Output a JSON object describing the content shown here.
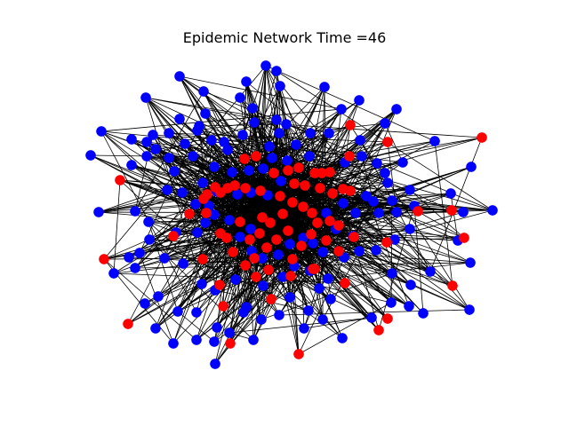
{
  "figure": {
    "title": "Epidemic Network Time =46"
  },
  "colors": {
    "infected": "#ff0000",
    "susceptible": "#0000ff",
    "edge": "#000000",
    "node_stroke": "#000000",
    "background": "#ffffff"
  },
  "legend": {
    "infected_color_name": "red",
    "susceptible_color_name": "blue"
  },
  "chart_data": {
    "type": "network",
    "title": "Epidemic Network Time =46",
    "time": 46,
    "axes_visible": false,
    "grid": false,
    "node_states": [
      "infected",
      "susceptible"
    ],
    "infected_count": 78,
    "susceptible_count": 152,
    "nodes": [
      {
        "state": "susceptible"
      },
      {
        "state": "susceptible"
      },
      {
        "state": "susceptible"
      },
      {
        "state": "susceptible"
      },
      {
        "state": "susceptible"
      },
      {
        "state": "susceptible"
      },
      {
        "state": "susceptible"
      },
      {
        "state": "susceptible"
      },
      {
        "state": "susceptible"
      },
      {
        "state": "susceptible"
      },
      {
        "state": "infected"
      },
      {
        "state": "infected"
      },
      {
        "state": "infected"
      },
      {
        "state": "infected"
      },
      {
        "state": "infected"
      },
      {
        "state": "infected"
      },
      {
        "state": "infected"
      },
      {
        "state": "infected"
      },
      {
        "state": "infected"
      },
      {
        "state": "infected"
      },
      {
        "state": "infected"
      },
      {
        "state": "infected"
      },
      {
        "state": "infected"
      },
      {
        "state": "infected"
      },
      {
        "state": "infected"
      },
      {
        "state": "infected"
      },
      {
        "state": "infected"
      },
      {
        "state": "infected"
      },
      {
        "state": "infected"
      },
      {
        "state": "infected"
      }
    ]
  }
}
